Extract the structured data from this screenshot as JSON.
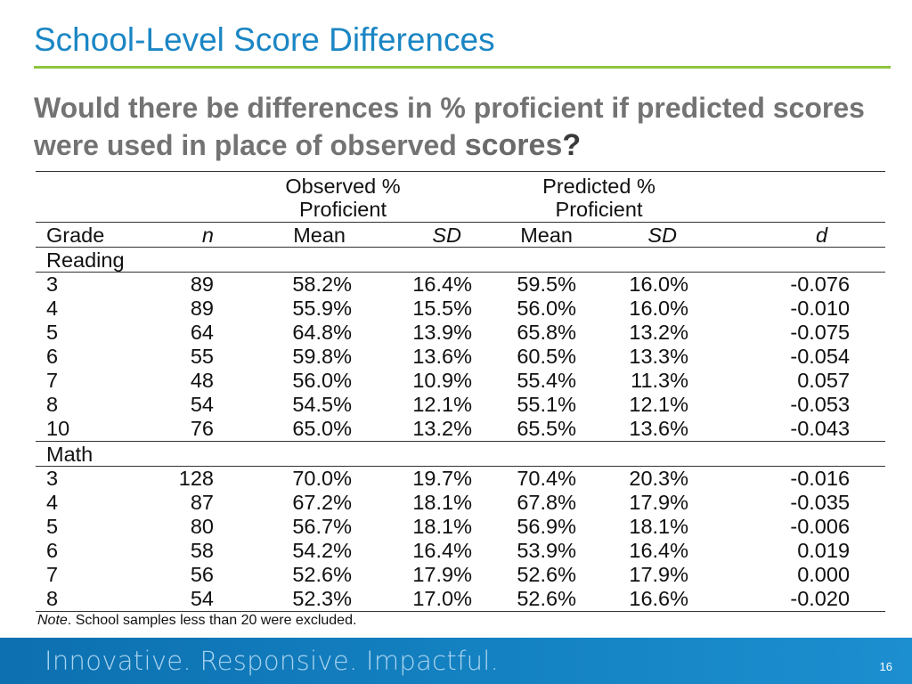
{
  "slide": {
    "title": "School-Level Score Differences",
    "question_main": "Would there be differences in % proficient if predicted scores were used in place of observed ",
    "question_emph": "scores",
    "question_mark": "?",
    "page_number": "16",
    "footer_tagline": "Innovative.  Responsive.  Impactful.",
    "accent_color": "#1b86c4",
    "rule_color": "#8dc63f",
    "footer_color": "#1482c2"
  },
  "table": {
    "group_headers": {
      "observed_line1": "Observed %",
      "observed_line2": "Proficient",
      "predicted_line1": "Predicted %",
      "predicted_line2": "Proficient"
    },
    "columns": {
      "grade": "Grade",
      "n": "n",
      "obs_mean": "Mean",
      "obs_sd": "SD",
      "pred_mean": "Mean",
      "pred_sd": "SD",
      "d": "d"
    },
    "sections": [
      {
        "label": "Reading",
        "rows": [
          {
            "grade": "3",
            "n": "89",
            "obs_mean": "58.2%",
            "obs_sd": "16.4%",
            "pred_mean": "59.5%",
            "pred_sd": "16.0%",
            "d": "-0.076"
          },
          {
            "grade": "4",
            "n": "89",
            "obs_mean": "55.9%",
            "obs_sd": "15.5%",
            "pred_mean": "56.0%",
            "pred_sd": "16.0%",
            "d": "-0.010"
          },
          {
            "grade": "5",
            "n": "64",
            "obs_mean": "64.8%",
            "obs_sd": "13.9%",
            "pred_mean": "65.8%",
            "pred_sd": "13.2%",
            "d": "-0.075"
          },
          {
            "grade": "6",
            "n": "55",
            "obs_mean": "59.8%",
            "obs_sd": "13.6%",
            "pred_mean": "60.5%",
            "pred_sd": "13.3%",
            "d": "-0.054"
          },
          {
            "grade": "7",
            "n": "48",
            "obs_mean": "56.0%",
            "obs_sd": "10.9%",
            "pred_mean": "55.4%",
            "pred_sd": "11.3%",
            "d": "0.057"
          },
          {
            "grade": "8",
            "n": "54",
            "obs_mean": "54.5%",
            "obs_sd": "12.1%",
            "pred_mean": "55.1%",
            "pred_sd": "12.1%",
            "d": "-0.053"
          },
          {
            "grade": "10",
            "n": "76",
            "obs_mean": "65.0%",
            "obs_sd": "13.2%",
            "pred_mean": "65.5%",
            "pred_sd": "13.6%",
            "d": "-0.043"
          }
        ]
      },
      {
        "label": "Math",
        "rows": [
          {
            "grade": "3",
            "n": "128",
            "obs_mean": "70.0%",
            "obs_sd": "19.7%",
            "pred_mean": "70.4%",
            "pred_sd": "20.3%",
            "d": "-0.016"
          },
          {
            "grade": "4",
            "n": "87",
            "obs_mean": "67.2%",
            "obs_sd": "18.1%",
            "pred_mean": "67.8%",
            "pred_sd": "17.9%",
            "d": "-0.035"
          },
          {
            "grade": "5",
            "n": "80",
            "obs_mean": "56.7%",
            "obs_sd": "18.1%",
            "pred_mean": "56.9%",
            "pred_sd": "18.1%",
            "d": "-0.006"
          },
          {
            "grade": "6",
            "n": "58",
            "obs_mean": "54.2%",
            "obs_sd": "16.4%",
            "pred_mean": "53.9%",
            "pred_sd": "16.4%",
            "d": "0.019"
          },
          {
            "grade": "7",
            "n": "56",
            "obs_mean": "52.6%",
            "obs_sd": "17.9%",
            "pred_mean": "52.6%",
            "pred_sd": "17.9%",
            "d": "0.000"
          },
          {
            "grade": "8",
            "n": "54",
            "obs_mean": "52.3%",
            "obs_sd": "17.0%",
            "pred_mean": "52.6%",
            "pred_sd": "16.6%",
            "d": "-0.020"
          }
        ]
      }
    ],
    "note_label": "Note",
    "note_text": ". School samples less than 20 were excluded."
  }
}
